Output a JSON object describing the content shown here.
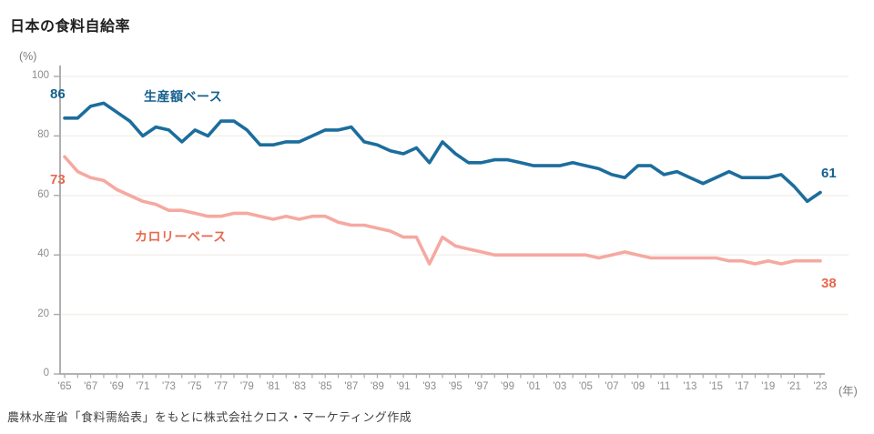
{
  "page": {
    "title": "日本の食料自給率",
    "source_note": "農林水産省「食料需給表」をもとに株式会社クロス・マーケティング作成"
  },
  "chart_data": {
    "type": "line",
    "title": "日本の食料自給率",
    "y_unit_label": "(%)",
    "x_unit_label": "(年)",
    "ylim": [
      0,
      100
    ],
    "y_ticks": [
      0,
      20,
      40,
      60,
      80,
      100
    ],
    "grid": "horizontal only, very light",
    "legend_position": "inline labels near lines",
    "years": [
      1965,
      1966,
      1967,
      1968,
      1969,
      1970,
      1971,
      1972,
      1973,
      1974,
      1975,
      1976,
      1977,
      1978,
      1979,
      1980,
      1981,
      1982,
      1983,
      1984,
      1985,
      1986,
      1987,
      1988,
      1989,
      1990,
      1991,
      1992,
      1993,
      1994,
      1995,
      1996,
      1997,
      1998,
      1999,
      2000,
      2001,
      2002,
      2003,
      2004,
      2005,
      2006,
      2007,
      2008,
      2009,
      2010,
      2011,
      2012,
      2013,
      2014,
      2015,
      2016,
      2017,
      2018,
      2019,
      2020,
      2021,
      2022,
      2023
    ],
    "x_tick_labels": [
      "'65",
      "'67",
      "'69",
      "'71",
      "'73",
      "'75",
      "'77",
      "'79",
      "'81",
      "'83",
      "'85",
      "'87",
      "'89",
      "'91",
      "'93",
      "'95",
      "'97",
      "'99",
      "'01",
      "'03",
      "'05",
      "'07",
      "'09",
      "'11",
      "'13",
      "'15",
      "'17",
      "'19",
      "'21",
      "'23"
    ],
    "x_label_every_years": 2,
    "series": [
      {
        "key": "production-value",
        "name": "生産額ベース",
        "color": "#1c6d9d",
        "label_color": "#15608f",
        "start_label": "86",
        "end_label": "61",
        "values": [
          86,
          86,
          90,
          91,
          88,
          85,
          80,
          83,
          82,
          78,
          82,
          80,
          85,
          85,
          82,
          77,
          77,
          78,
          78,
          80,
          82,
          82,
          83,
          78,
          77,
          75,
          74,
          76,
          71,
          78,
          74,
          71,
          71,
          72,
          72,
          71,
          70,
          70,
          70,
          71,
          70,
          69,
          67,
          66,
          70,
          70,
          67,
          68,
          66,
          64,
          66,
          68,
          66,
          66,
          66,
          67,
          63,
          58,
          61
        ]
      },
      {
        "key": "calorie",
        "name": "カロリーベース",
        "color": "#f5a9a1",
        "label_color": "#e8684d",
        "start_label": "73",
        "end_label": "38",
        "values": [
          73,
          68,
          66,
          65,
          62,
          60,
          58,
          57,
          55,
          55,
          54,
          53,
          53,
          54,
          54,
          53,
          52,
          53,
          52,
          53,
          53,
          51,
          50,
          50,
          49,
          48,
          46,
          46,
          37,
          46,
          43,
          42,
          41,
          40,
          40,
          40,
          40,
          40,
          40,
          40,
          40,
          39,
          40,
          41,
          40,
          39,
          39,
          39,
          39,
          39,
          39,
          38,
          38,
          37,
          38,
          37,
          38,
          38,
          38
        ]
      }
    ],
    "style_colors": {
      "grid": "#f4f1ec",
      "axis": "#a8a8a8",
      "tick_text": "#8c8c8c"
    }
  }
}
